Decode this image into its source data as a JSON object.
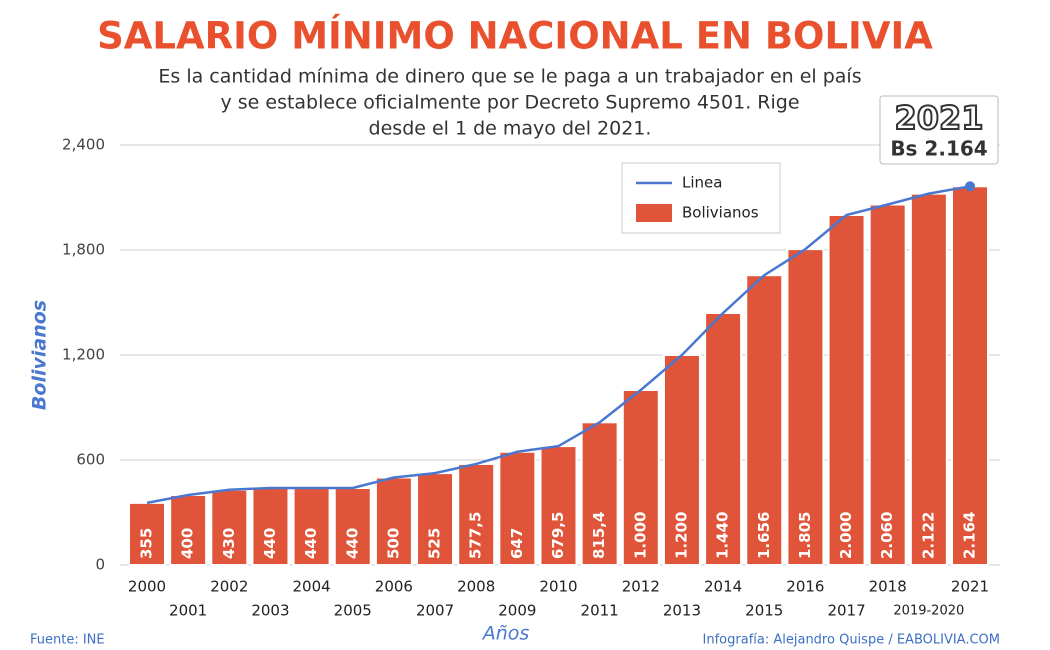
{
  "chart_data": {
    "type": "bar",
    "title": "SALARIO MÍNIMO NACIONAL EN BOLIVIA",
    "subtitle": [
      "Es la cantidad mínima de dinero que se le paga a un trabajador en el país",
      "y se establece oficialmente por Decreto Supremo 4501. Rige",
      "desde el 1 de mayo del 2021."
    ],
    "y_label": "Bolivianos",
    "x_label": "Años",
    "categories": [
      "2000",
      "2001",
      "2002",
      "2003",
      "2004",
      "2005",
      "2006",
      "2007",
      "2008",
      "2009",
      "2010",
      "2011",
      "2012",
      "2013",
      "2014",
      "2015",
      "2016",
      "2017",
      "2018",
      "2019-2020",
      "2021"
    ],
    "series": [
      {
        "name": "Linea",
        "type": "line",
        "color": "#4a78d0",
        "values": [
          355,
          400,
          430,
          440,
          440,
          440,
          500,
          525,
          577.5,
          647,
          679.5,
          815.4,
          1000,
          1200,
          1440,
          1656,
          1805,
          2000,
          2060,
          2122,
          2164
        ]
      },
      {
        "name": "Bolivianos",
        "type": "bar",
        "color": "#e0553a",
        "values": [
          355,
          400,
          430,
          440,
          440,
          440,
          500,
          525,
          577.5,
          647,
          679.5,
          815.4,
          1000,
          1200,
          1440,
          1656,
          1805,
          2000,
          2060,
          2122,
          2164
        ],
        "value_labels": [
          "355",
          "400",
          "430",
          "440",
          "440",
          "440",
          "500",
          "525",
          "577,5",
          "647",
          "679,5",
          "815,4",
          "1.000",
          "1.200",
          "1.440",
          "1.656",
          "1.805",
          "2.000",
          "2.060",
          "2.122",
          "2.164"
        ]
      }
    ],
    "ylim": [
      0,
      2400
    ],
    "yticks": [
      0,
      600,
      {
        "value": 1200,
        "label": "1,200"
      },
      {
        "value": 1800,
        "label": "1,800"
      },
      {
        "value": 2400,
        "label": "2,400"
      }
    ],
    "grid": true,
    "annotation": {
      "title": "2021",
      "text": "Bs 2.164"
    },
    "source": "Fuente: INE",
    "credit": "Infografía: Alejandro Quispe / EABOLIVIA.COM"
  }
}
